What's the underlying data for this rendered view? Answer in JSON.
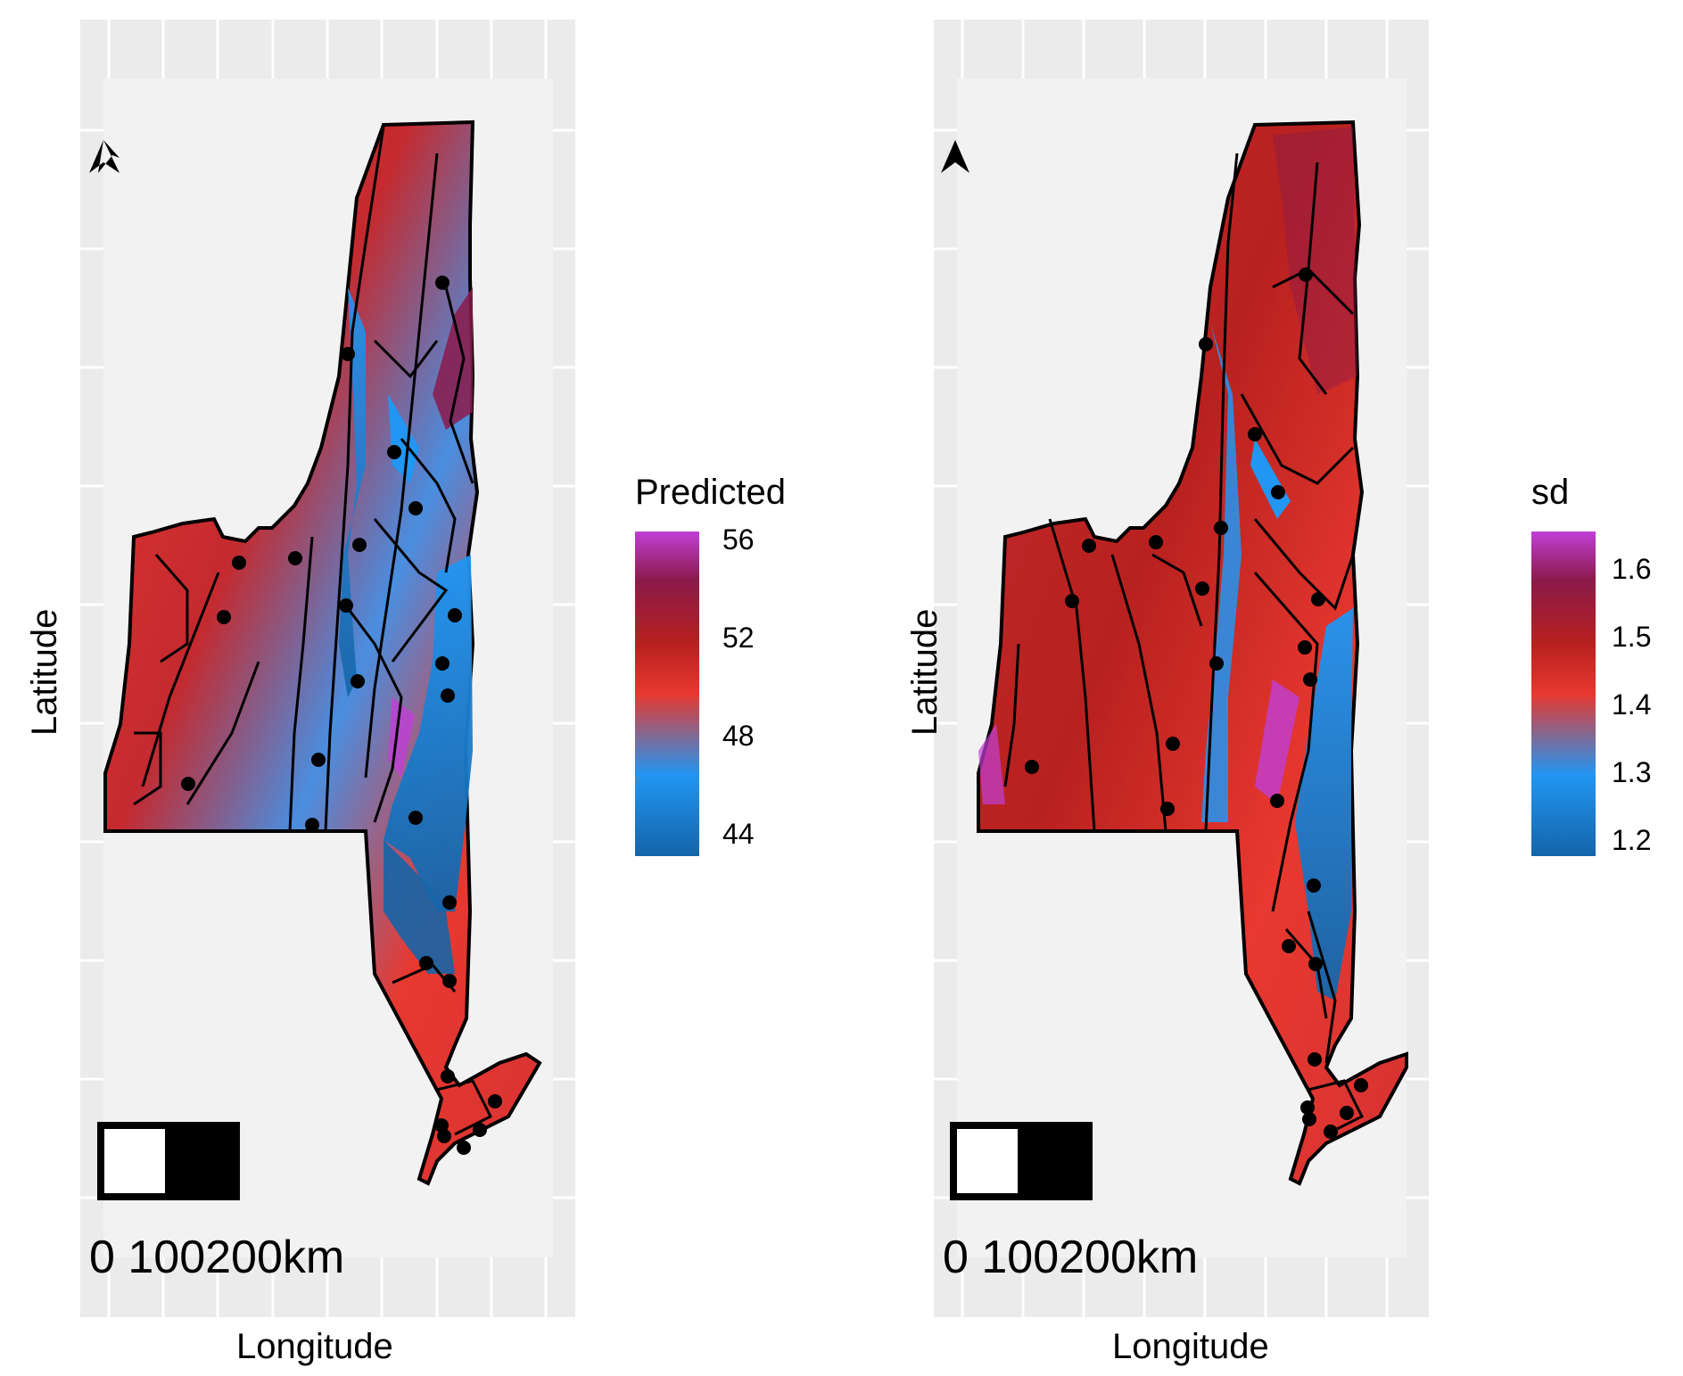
{
  "axes": {
    "xlabel": "Longitude",
    "ylabel": "Latitude"
  },
  "panels": [
    {
      "legend_title": "Predicted",
      "legend_ticks": [
        "56",
        "52",
        "48",
        "44"
      ],
      "legend_colors": [
        "#1565a8",
        "#2196f3",
        "#e8382f",
        "#b8211f",
        "#8b1a4a",
        "#c03fd6"
      ],
      "scale_bar_label": "0 100200km"
    },
    {
      "legend_title": "sd",
      "legend_ticks": [
        "1.6",
        "1.5",
        "1.4",
        "1.3",
        "1.2"
      ],
      "legend_colors": [
        "#1565a8",
        "#2196f3",
        "#e8382f",
        "#b8211f",
        "#8b1a4a",
        "#c03fd6"
      ],
      "scale_bar_label": "0 100200km"
    }
  ],
  "colors": {
    "panel_background": "#ebebeb",
    "map_inner_background": "#f2f2f2",
    "gridline": "#ffffff",
    "outline": "#000000"
  },
  "icons": [
    "north-arrow-icon"
  ]
}
